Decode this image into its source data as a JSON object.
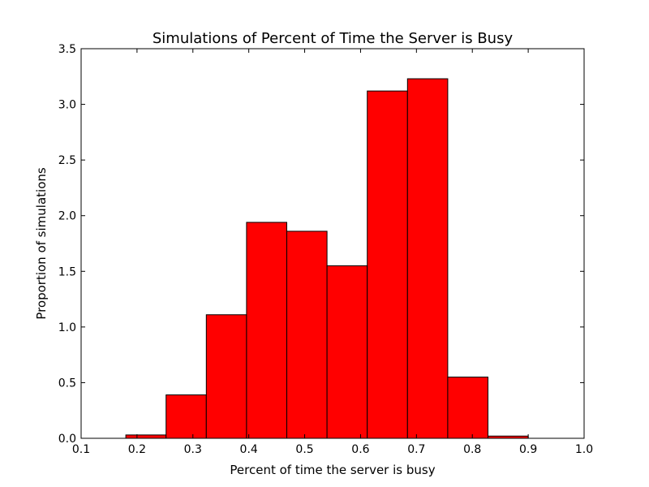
{
  "chart_data": {
    "type": "bar",
    "title": "Simulations of Percent of Time the Server is Busy",
    "xlabel": "Percent of time the server is busy",
    "ylabel": "Proportion of simulations",
    "xlim": [
      0.1,
      1.0
    ],
    "ylim": [
      0.0,
      3.5
    ],
    "xticks": [
      "0.1",
      "0.2",
      "0.3",
      "0.4",
      "0.5",
      "0.6",
      "0.7",
      "0.8",
      "0.9",
      "1.0"
    ],
    "yticks": [
      "0.0",
      "0.5",
      "1.0",
      "1.5",
      "2.0",
      "2.5",
      "3.0",
      "3.5"
    ],
    "bin_edges": [
      0.18,
      0.252,
      0.324,
      0.396,
      0.468,
      0.54,
      0.612,
      0.684,
      0.756,
      0.828,
      0.9
    ],
    "values": [
      0.03,
      0.39,
      1.11,
      1.94,
      1.86,
      1.55,
      3.12,
      3.23,
      0.55,
      0.02
    ],
    "bar_color": "#ff0000",
    "edge_color": "#000000",
    "grid": false
  }
}
